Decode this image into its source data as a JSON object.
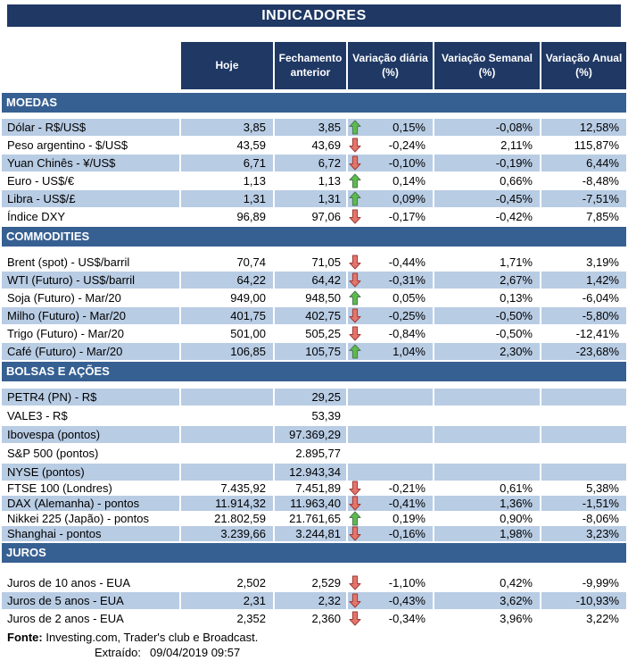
{
  "title": "INDICADORES",
  "header": {
    "columns": [
      "Hoje",
      "Fechamento anterior",
      "Variação diária (%)",
      "Variação Semanal (%)",
      "Variação Anual (%)"
    ]
  },
  "sections": [
    {
      "name": "MOEDAS",
      "slug": "moedas",
      "rows": [
        {
          "label": "Dólar - R$/US$",
          "hoje": "3,85",
          "fechamento": "3,85",
          "arrow": "up",
          "diaria": "0,15%",
          "semanal": "-0,08%",
          "anual": "12,58%",
          "shade": "blue"
        },
        {
          "label": "Peso argentino - $/US$",
          "hoje": "43,59",
          "fechamento": "43,69",
          "arrow": "down",
          "diaria": "-0,24%",
          "semanal": "2,11%",
          "anual": "115,87%",
          "shade": "white"
        },
        {
          "label": "Yuan Chinês - ¥/US$",
          "hoje": "6,71",
          "fechamento": "6,72",
          "arrow": "down",
          "diaria": "-0,10%",
          "semanal": "-0,19%",
          "anual": "6,44%",
          "shade": "blue"
        },
        {
          "label": "Euro - US$/€",
          "hoje": "1,13",
          "fechamento": "1,13",
          "arrow": "up",
          "diaria": "0,14%",
          "semanal": "0,66%",
          "anual": "-8,48%",
          "shade": "white"
        },
        {
          "label": "Libra - US$/£",
          "hoje": "1,31",
          "fechamento": "1,31",
          "arrow": "up",
          "diaria": "0,09%",
          "semanal": "-0,45%",
          "anual": "-7,51%",
          "shade": "blue"
        },
        {
          "label": "Índice DXY",
          "hoje": "96,89",
          "fechamento": "97,06",
          "arrow": "down",
          "diaria": "-0,17%",
          "semanal": "-0,42%",
          "anual": "7,85%",
          "shade": "white"
        }
      ]
    },
    {
      "name": "COMMODITIES",
      "slug": "commodities",
      "rows": [
        {
          "label": "Brent (spot) - US$/barril",
          "hoje": "70,74",
          "fechamento": "71,05",
          "arrow": "down",
          "diaria": "-0,44%",
          "semanal": "1,71%",
          "anual": "3,19%",
          "shade": "white"
        },
        {
          "label": "WTI (Futuro) - US$/barril",
          "hoje": "64,22",
          "fechamento": "64,42",
          "arrow": "down",
          "diaria": "-0,31%",
          "semanal": "2,67%",
          "anual": "1,42%",
          "shade": "blue"
        },
        {
          "label": "Soja (Futuro) - Mar/20",
          "hoje": "949,00",
          "fechamento": "948,50",
          "arrow": "up",
          "diaria": "0,05%",
          "semanal": "0,13%",
          "anual": "-6,04%",
          "shade": "white"
        },
        {
          "label": "Milho (Futuro) - Mar/20",
          "hoje": "401,75",
          "fechamento": "402,75",
          "arrow": "down",
          "diaria": "-0,25%",
          "semanal": "-0,50%",
          "anual": "-5,80%",
          "shade": "blue"
        },
        {
          "label": "Trigo (Futuro) - Mar/20",
          "hoje": "501,00",
          "fechamento": "505,25",
          "arrow": "down",
          "diaria": "-0,84%",
          "semanal": "-0,50%",
          "anual": "-12,41%",
          "shade": "white"
        },
        {
          "label": "Café (Futuro) - Mar/20",
          "hoje": "106,85",
          "fechamento": "105,75",
          "arrow": "up",
          "diaria": "1,04%",
          "semanal": "2,30%",
          "anual": "-23,68%",
          "shade": "blue"
        }
      ]
    },
    {
      "name": "BOLSAS E AÇÕES",
      "slug": "bolsas",
      "rows": [
        {
          "label": "PETR4 (PN) - R$",
          "hoje": "",
          "fechamento": "29,25",
          "arrow": "",
          "diaria": "",
          "semanal": "",
          "anual": "",
          "shade": "blue"
        },
        {
          "label": "VALE3 - R$",
          "hoje": "",
          "fechamento": "53,39",
          "arrow": "",
          "diaria": "",
          "semanal": "",
          "anual": "",
          "shade": "white"
        },
        {
          "label": "Ibovespa (pontos)",
          "hoje": "",
          "fechamento": "97.369,29",
          "arrow": "",
          "diaria": "",
          "semanal": "",
          "anual": "",
          "shade": "blue"
        },
        {
          "label": "S&P 500 (pontos)",
          "hoje": "",
          "fechamento": "2.895,77",
          "arrow": "",
          "diaria": "",
          "semanal": "",
          "anual": "",
          "shade": "white"
        },
        {
          "label": "NYSE (pontos)",
          "hoje": "",
          "fechamento": "12.943,34",
          "arrow": "",
          "diaria": "",
          "semanal": "",
          "anual": "",
          "shade": "blue"
        },
        {
          "label": "FTSE 100 (Londres)",
          "hoje": "7.435,92",
          "fechamento": "7.451,89",
          "arrow": "down",
          "diaria": "-0,21%",
          "semanal": "0,61%",
          "anual": "5,38%",
          "shade": "white"
        },
        {
          "label": "DAX (Alemanha) - pontos",
          "hoje": "11.914,32",
          "fechamento": "11.963,40",
          "arrow": "down",
          "diaria": "-0,41%",
          "semanal": "1,36%",
          "anual": "-1,51%",
          "shade": "blue"
        },
        {
          "label": "Nikkei 225 (Japão) - pontos",
          "hoje": "21.802,59",
          "fechamento": "21.761,65",
          "arrow": "up",
          "diaria": "0,19%",
          "semanal": "0,90%",
          "anual": "-8,06%",
          "shade": "white"
        },
        {
          "label": "Shanghai - pontos",
          "hoje": "3.239,66",
          "fechamento": "3.244,81",
          "arrow": "down",
          "diaria": "-0,16%",
          "semanal": "1,98%",
          "anual": "3,23%",
          "shade": "blue"
        }
      ]
    },
    {
      "name": "JUROS",
      "slug": "juros",
      "rows": [
        {
          "label": "Juros de 10 anos - EUA",
          "hoje": "2,502",
          "fechamento": "2,529",
          "arrow": "down",
          "diaria": "-1,10%",
          "semanal": "0,42%",
          "anual": "-9,99%",
          "shade": "white"
        },
        {
          "label": "Juros de 5 anos - EUA",
          "hoje": "2,31",
          "fechamento": "2,32",
          "arrow": "down",
          "diaria": "-0,43%",
          "semanal": "3,62%",
          "anual": "-10,93%",
          "shade": "blue"
        },
        {
          "label": "Juros de 2 anos - EUA",
          "hoje": "2,352",
          "fechamento": "2,360",
          "arrow": "down",
          "diaria": "-0,34%",
          "semanal": "3,96%",
          "anual": "3,22%",
          "shade": "white"
        }
      ]
    }
  ],
  "footer": {
    "fonte_label": "Fonte:",
    "fonte_text": "Investing.com, Trader's club e Broadcast.",
    "extraido_label": "Extraído:",
    "extraido_value": "09/04/2019 09:57"
  },
  "icons": {
    "up": "up-arrow-icon",
    "down": "down-arrow-icon"
  },
  "colors": {
    "header_navy": "#1F3864",
    "section_blue": "#376092",
    "row_light_blue": "#B8CCE4",
    "up_arrow_fill": "#5CBB4E",
    "up_arrow_stroke": "#4D7A50",
    "down_arrow_fill": "#E4756B",
    "down_arrow_stroke": "#9E3B38"
  }
}
